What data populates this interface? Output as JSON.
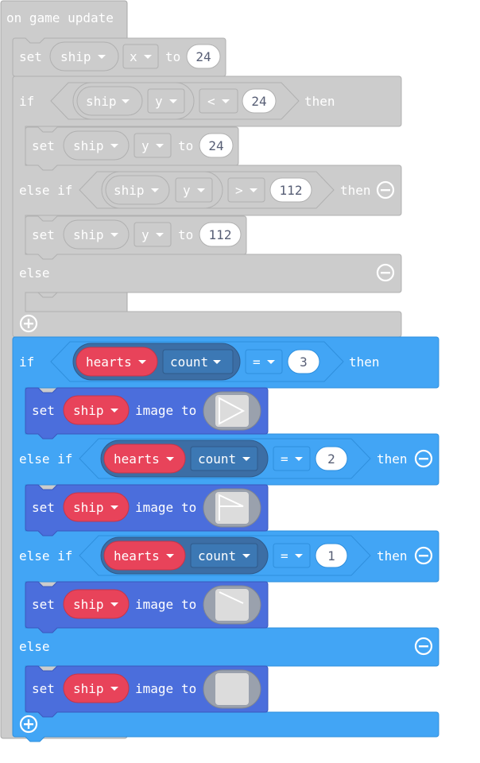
{
  "colors": {
    "event": "#cccccc",
    "event_stroke": "#a8a8a8",
    "logic_gray": "#cccccc",
    "logic_gray_stroke": "#b0b0b0",
    "logic_blue": "#42a5f5",
    "logic_blue_stroke": "#2f8fdd",
    "set_blue": "#4b6edc",
    "set_blue_stroke": "#3a58bd",
    "sprite_var": "#e8435a",
    "sprite_var_stroke": "#c4354a",
    "count_dd": "#3c78b4",
    "info_pill": "#3c6ea5",
    "image_frame": "#9aa1ad",
    "image_inner": "#dcdcdc"
  },
  "event_block": {
    "label": "on game update"
  },
  "gray_if": {
    "set_x": {
      "set": "set",
      "var": "ship",
      "prop": "x",
      "to": "to",
      "value": "24"
    },
    "if": {
      "label": "if",
      "var": "ship",
      "prop": "y",
      "op": "<",
      "value": "24",
      "then": "then"
    },
    "body1": {
      "set": "set",
      "var": "ship",
      "prop": "y",
      "to": "to",
      "value": "24"
    },
    "elseif": {
      "label": "else if",
      "var": "ship",
      "prop": "y",
      "op": ">",
      "value": "112",
      "then": "then"
    },
    "body2": {
      "set": "set",
      "var": "ship",
      "prop": "y",
      "to": "to",
      "value": "112"
    },
    "else": {
      "label": "else"
    }
  },
  "blue_if": {
    "if": {
      "label": "if",
      "var": "hearts",
      "prop": "count",
      "op": "=",
      "value": "3",
      "then": "then"
    },
    "body1": {
      "set": "set",
      "var": "ship",
      "prop": "image",
      "to": "to"
    },
    "elseif1": {
      "label": "else if",
      "var": "hearts",
      "prop": "count",
      "op": "=",
      "value": "2",
      "then": "then"
    },
    "body2": {
      "set": "set",
      "var": "ship",
      "prop": "image",
      "to": "to"
    },
    "elseif2": {
      "label": "else if",
      "var": "hearts",
      "prop": "count",
      "op": "=",
      "value": "1",
      "then": "then"
    },
    "body3": {
      "set": "set",
      "var": "ship",
      "prop": "image",
      "to": "to"
    },
    "else": {
      "label": "else"
    },
    "body4": {
      "set": "set",
      "var": "ship",
      "prop": "image",
      "to": "to"
    }
  },
  "icons": {
    "dropdown": "chevron-down-icon",
    "remove": "minus-circle-icon",
    "add": "plus-circle-icon"
  }
}
